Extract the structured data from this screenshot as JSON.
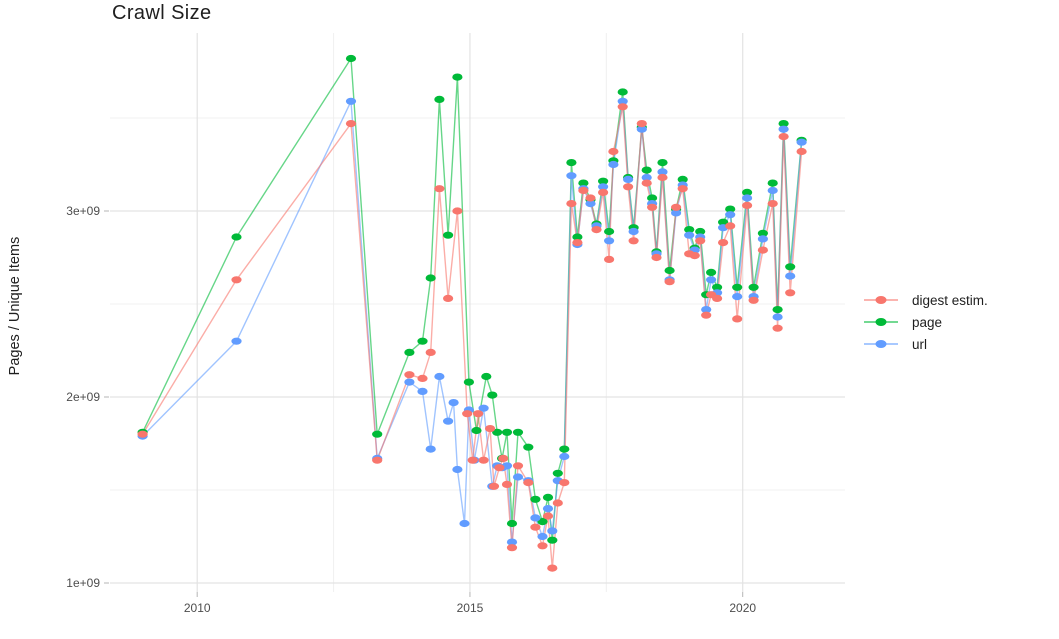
{
  "title": "Crawl Size",
  "chart_data": {
    "type": "line",
    "title": "Crawl Size",
    "xlabel": "",
    "ylabel": "Pages / Unique Items",
    "values_unit": "billions (1 = 1e+09)",
    "grid": "major and minor gridlines on white background",
    "legend_position": "right",
    "x_axis": {
      "range": [
        2008.4,
        2021.9
      ],
      "ticks": [
        {
          "value": 2010,
          "label": "2010"
        },
        {
          "value": 2015,
          "label": "2015"
        },
        {
          "value": 2020,
          "label": "2020"
        }
      ],
      "minor": [
        2012.5,
        2017.5
      ]
    },
    "y_axis": {
      "range": [
        0.95,
        3.96
      ],
      "ticks": [
        {
          "value": 1,
          "label": "1e+09"
        },
        {
          "value": 2,
          "label": "2e+09"
        },
        {
          "value": 3,
          "label": "3e+09"
        }
      ],
      "minor": [
        1.5,
        2.5,
        3.5
      ]
    },
    "series": [
      {
        "name": "digest estim.",
        "color": "#F8766D",
        "points": [
          [
            2009.0,
            1.8
          ],
          [
            2010.72,
            2.63
          ],
          [
            2012.82,
            3.47
          ],
          [
            2013.3,
            1.66
          ],
          [
            2013.89,
            2.12
          ],
          [
            2014.13,
            2.1
          ],
          [
            2014.28,
            2.24
          ],
          [
            2014.44,
            3.12
          ],
          [
            2014.6,
            2.53
          ],
          [
            2014.77,
            3.0
          ],
          [
            2014.95,
            1.91
          ],
          [
            2015.05,
            1.66
          ],
          [
            2015.15,
            1.91
          ],
          [
            2015.25,
            1.66
          ],
          [
            2015.37,
            1.83
          ],
          [
            2015.44,
            1.52
          ],
          [
            2015.54,
            1.62
          ],
          [
            2015.61,
            1.67
          ],
          [
            2015.68,
            1.53
          ],
          [
            2015.77,
            1.19
          ],
          [
            2015.88,
            1.63
          ],
          [
            2016.07,
            1.54
          ],
          [
            2016.2,
            1.3
          ],
          [
            2016.33,
            1.2
          ],
          [
            2016.43,
            1.36
          ],
          [
            2016.51,
            1.08
          ],
          [
            2016.61,
            1.43
          ],
          [
            2016.73,
            1.54
          ],
          [
            2016.86,
            3.04
          ],
          [
            2016.97,
            2.83
          ],
          [
            2017.08,
            3.11
          ],
          [
            2017.21,
            3.07
          ],
          [
            2017.32,
            2.9
          ],
          [
            2017.44,
            3.1
          ],
          [
            2017.55,
            2.74
          ],
          [
            2017.63,
            3.32
          ],
          [
            2017.8,
            3.56
          ],
          [
            2017.9,
            3.13
          ],
          [
            2018.0,
            2.84
          ],
          [
            2018.15,
            3.47
          ],
          [
            2018.24,
            3.15
          ],
          [
            2018.34,
            3.02
          ],
          [
            2018.42,
            2.75
          ],
          [
            2018.53,
            3.18
          ],
          [
            2018.66,
            2.62
          ],
          [
            2018.78,
            3.02
          ],
          [
            2018.9,
            3.12
          ],
          [
            2019.02,
            2.77
          ],
          [
            2019.12,
            2.76
          ],
          [
            2019.22,
            2.84
          ],
          [
            2019.33,
            2.44
          ],
          [
            2019.42,
            2.55
          ],
          [
            2019.53,
            2.53
          ],
          [
            2019.64,
            2.83
          ],
          [
            2019.77,
            2.92
          ],
          [
            2019.9,
            2.42
          ],
          [
            2020.08,
            3.03
          ],
          [
            2020.2,
            2.52
          ],
          [
            2020.37,
            2.79
          ],
          [
            2020.55,
            3.04
          ],
          [
            2020.64,
            2.37
          ],
          [
            2020.75,
            3.4
          ],
          [
            2020.87,
            2.56
          ],
          [
            2021.08,
            3.32
          ]
        ]
      },
      {
        "name": "page",
        "color": "#00BA38",
        "points": [
          [
            2009.0,
            1.81
          ],
          [
            2010.72,
            2.86
          ],
          [
            2012.82,
            3.82
          ],
          [
            2013.3,
            1.8
          ],
          [
            2013.89,
            2.24
          ],
          [
            2014.13,
            2.3
          ],
          [
            2014.28,
            2.64
          ],
          [
            2014.44,
            3.6
          ],
          [
            2014.6,
            2.87
          ],
          [
            2014.77,
            3.72
          ],
          [
            2014.98,
            2.08
          ],
          [
            2015.12,
            1.82
          ],
          [
            2015.3,
            2.11
          ],
          [
            2015.41,
            2.01
          ],
          [
            2015.5,
            1.81
          ],
          [
            2015.59,
            1.67
          ],
          [
            2015.68,
            1.81
          ],
          [
            2015.77,
            1.32
          ],
          [
            2015.88,
            1.81
          ],
          [
            2016.07,
            1.73
          ],
          [
            2016.2,
            1.45
          ],
          [
            2016.33,
            1.33
          ],
          [
            2016.43,
            1.46
          ],
          [
            2016.51,
            1.23
          ],
          [
            2016.61,
            1.59
          ],
          [
            2016.73,
            1.72
          ],
          [
            2016.86,
            3.26
          ],
          [
            2016.97,
            2.86
          ],
          [
            2017.08,
            3.15
          ],
          [
            2017.21,
            3.06
          ],
          [
            2017.32,
            2.93
          ],
          [
            2017.44,
            3.16
          ],
          [
            2017.55,
            2.89
          ],
          [
            2017.63,
            3.27
          ],
          [
            2017.8,
            3.64
          ],
          [
            2017.9,
            3.18
          ],
          [
            2018.0,
            2.91
          ],
          [
            2018.15,
            3.45
          ],
          [
            2018.24,
            3.22
          ],
          [
            2018.34,
            3.07
          ],
          [
            2018.42,
            2.78
          ],
          [
            2018.53,
            3.26
          ],
          [
            2018.66,
            2.68
          ],
          [
            2018.78,
            3.01
          ],
          [
            2018.9,
            3.17
          ],
          [
            2019.02,
            2.9
          ],
          [
            2019.12,
            2.8
          ],
          [
            2019.22,
            2.89
          ],
          [
            2019.33,
            2.55
          ],
          [
            2019.42,
            2.67
          ],
          [
            2019.53,
            2.59
          ],
          [
            2019.64,
            2.94
          ],
          [
            2019.77,
            3.01
          ],
          [
            2019.9,
            2.59
          ],
          [
            2020.08,
            3.1
          ],
          [
            2020.2,
            2.59
          ],
          [
            2020.37,
            2.88
          ],
          [
            2020.55,
            3.15
          ],
          [
            2020.64,
            2.47
          ],
          [
            2020.75,
            3.47
          ],
          [
            2020.87,
            2.7
          ],
          [
            2021.08,
            3.38
          ]
        ]
      },
      {
        "name": "url",
        "color": "#619CFF",
        "points": [
          [
            2009.0,
            1.79
          ],
          [
            2010.72,
            2.3
          ],
          [
            2012.82,
            3.59
          ],
          [
            2013.3,
            1.67
          ],
          [
            2013.89,
            2.08
          ],
          [
            2014.13,
            2.03
          ],
          [
            2014.28,
            1.72
          ],
          [
            2014.44,
            2.11
          ],
          [
            2014.6,
            1.87
          ],
          [
            2014.7,
            1.97
          ],
          [
            2014.77,
            1.61
          ],
          [
            2014.9,
            1.32
          ],
          [
            2014.98,
            1.93
          ],
          [
            2015.08,
            1.66
          ],
          [
            2015.25,
            1.94
          ],
          [
            2015.41,
            1.52
          ],
          [
            2015.5,
            1.63
          ],
          [
            2015.59,
            1.62
          ],
          [
            2015.68,
            1.63
          ],
          [
            2015.77,
            1.22
          ],
          [
            2015.88,
            1.57
          ],
          [
            2016.07,
            1.55
          ],
          [
            2016.2,
            1.35
          ],
          [
            2016.33,
            1.25
          ],
          [
            2016.43,
            1.4
          ],
          [
            2016.51,
            1.28
          ],
          [
            2016.61,
            1.55
          ],
          [
            2016.73,
            1.68
          ],
          [
            2016.86,
            3.19
          ],
          [
            2016.97,
            2.82
          ],
          [
            2017.08,
            3.12
          ],
          [
            2017.21,
            3.04
          ],
          [
            2017.32,
            2.92
          ],
          [
            2017.44,
            3.13
          ],
          [
            2017.55,
            2.84
          ],
          [
            2017.63,
            3.25
          ],
          [
            2017.8,
            3.59
          ],
          [
            2017.9,
            3.17
          ],
          [
            2018.0,
            2.89
          ],
          [
            2018.15,
            3.44
          ],
          [
            2018.24,
            3.18
          ],
          [
            2018.34,
            3.04
          ],
          [
            2018.42,
            2.77
          ],
          [
            2018.53,
            3.21
          ],
          [
            2018.66,
            2.63
          ],
          [
            2018.78,
            2.99
          ],
          [
            2018.9,
            3.14
          ],
          [
            2019.02,
            2.87
          ],
          [
            2019.12,
            2.79
          ],
          [
            2019.22,
            2.86
          ],
          [
            2019.33,
            2.47
          ],
          [
            2019.42,
            2.63
          ],
          [
            2019.53,
            2.56
          ],
          [
            2019.64,
            2.91
          ],
          [
            2019.77,
            2.98
          ],
          [
            2019.9,
            2.54
          ],
          [
            2020.08,
            3.07
          ],
          [
            2020.2,
            2.54
          ],
          [
            2020.37,
            2.85
          ],
          [
            2020.55,
            3.11
          ],
          [
            2020.64,
            2.43
          ],
          [
            2020.75,
            3.44
          ],
          [
            2020.87,
            2.65
          ],
          [
            2021.08,
            3.37
          ]
        ]
      }
    ],
    "style": {
      "grid_major_color": "#E3E3E3",
      "grid_minor_color": "#F0F0F0",
      "tick_color": "#B5B5B5",
      "tick_label_color": "#4D4D4D",
      "line_opacity": 0.6,
      "draw_order": [
        "page",
        "url",
        "digest estim."
      ]
    }
  }
}
